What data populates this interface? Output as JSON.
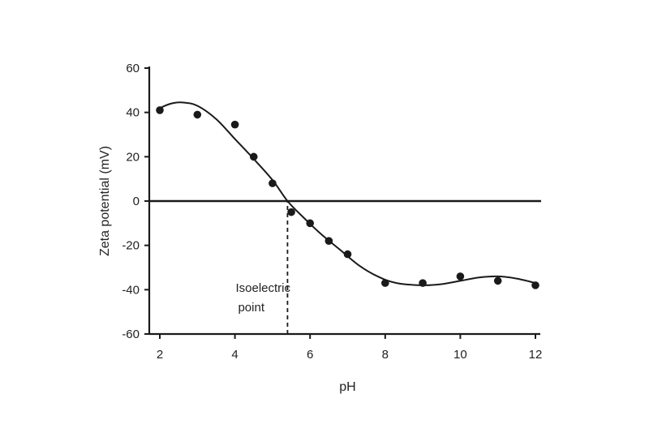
{
  "chart_data": {
    "type": "scatter",
    "title": "",
    "xlabel": "pH",
    "ylabel": "Zeta potential (mV)",
    "xlim": [
      2,
      12
    ],
    "ylim": [
      -60,
      60
    ],
    "x_ticks": [
      2,
      4,
      6,
      8,
      10,
      12
    ],
    "y_ticks": [
      60,
      40,
      20,
      0,
      -20,
      -40,
      -60
    ],
    "grid": false,
    "legend": "none",
    "series": [
      {
        "type": "scatter",
        "points": [
          {
            "x": 2.0,
            "y": 41
          },
          {
            "x": 3.0,
            "y": 39
          },
          {
            "x": 4.0,
            "y": 34.5
          },
          {
            "x": 4.5,
            "y": 20
          },
          {
            "x": 5.0,
            "y": 8
          },
          {
            "x": 5.5,
            "y": -5
          },
          {
            "x": 6.0,
            "y": -10
          },
          {
            "x": 6.5,
            "y": -18
          },
          {
            "x": 7.0,
            "y": -24
          },
          {
            "x": 8.0,
            "y": -37
          },
          {
            "x": 9.0,
            "y": -37
          },
          {
            "x": 10.0,
            "y": -34
          },
          {
            "x": 11.0,
            "y": -36
          },
          {
            "x": 12.0,
            "y": -38
          }
        ]
      },
      {
        "type": "line",
        "fit": true,
        "points": [
          {
            "x": 2.0,
            "y": 42
          },
          {
            "x": 2.3,
            "y": 44
          },
          {
            "x": 2.6,
            "y": 44.5
          },
          {
            "x": 3.0,
            "y": 43
          },
          {
            "x": 3.5,
            "y": 37
          },
          {
            "x": 4.0,
            "y": 28
          },
          {
            "x": 4.5,
            "y": 19
          },
          {
            "x": 5.0,
            "y": 9.5
          },
          {
            "x": 5.4,
            "y": 0
          },
          {
            "x": 5.8,
            "y": -7
          },
          {
            "x": 6.3,
            "y": -15
          },
          {
            "x": 6.8,
            "y": -22
          },
          {
            "x": 7.3,
            "y": -29
          },
          {
            "x": 7.8,
            "y": -34
          },
          {
            "x": 8.3,
            "y": -37
          },
          {
            "x": 9.0,
            "y": -38
          },
          {
            "x": 9.5,
            "y": -37.5
          },
          {
            "x": 10.0,
            "y": -36
          },
          {
            "x": 10.5,
            "y": -34.5
          },
          {
            "x": 11.0,
            "y": -34
          },
          {
            "x": 11.5,
            "y": -35
          },
          {
            "x": 12.0,
            "y": -37
          }
        ]
      }
    ],
    "reference_lines": [
      {
        "orientation": "horizontal",
        "y": 0,
        "style": "solid"
      },
      {
        "orientation": "vertical",
        "x": 5.4,
        "from_y": -60,
        "to_y": 0,
        "style": "dashed"
      }
    ],
    "annotations": [
      {
        "lines": [
          "Isoelectric",
          "point"
        ]
      }
    ],
    "colors": {
      "marks": "#1a1a1a",
      "text": "#222222"
    }
  }
}
